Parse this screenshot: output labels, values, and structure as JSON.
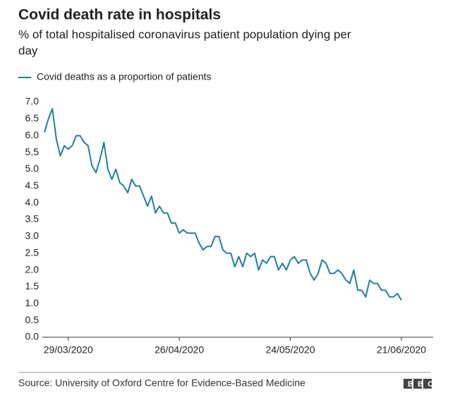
{
  "chart_data": {
    "type": "line",
    "title": "Covid death rate in hospitals",
    "subtitle": [
      "% of total hospitalised coronavirus patient population dying per",
      "day"
    ],
    "source": "Source: University of Oxford Centre for Evidence-Based Medicine",
    "logo": "BBC",
    "categories": [
      "23/03/2020",
      "24/03/2020",
      "25/03/2020",
      "26/03/2020",
      "27/03/2020",
      "28/03/2020",
      "29/03/2020",
      "30/03/2020",
      "31/03/2020",
      "01/04/2020",
      "02/04/2020",
      "03/04/2020",
      "04/04/2020",
      "05/04/2020",
      "06/04/2020",
      "07/04/2020",
      "08/04/2020",
      "09/04/2020",
      "10/04/2020",
      "11/04/2020",
      "12/04/2020",
      "13/04/2020",
      "14/04/2020",
      "15/04/2020",
      "16/04/2020",
      "17/04/2020",
      "18/04/2020",
      "19/04/2020",
      "20/04/2020",
      "21/04/2020",
      "22/04/2020",
      "23/04/2020",
      "24/04/2020",
      "25/04/2020",
      "26/04/2020",
      "27/04/2020",
      "28/04/2020",
      "29/04/2020",
      "30/04/2020",
      "01/05/2020",
      "02/05/2020",
      "03/05/2020",
      "04/05/2020",
      "05/05/2020",
      "06/05/2020",
      "07/05/2020",
      "08/05/2020",
      "09/05/2020",
      "10/05/2020",
      "11/05/2020",
      "12/05/2020",
      "13/05/2020",
      "14/05/2020",
      "15/05/2020",
      "16/05/2020",
      "17/05/2020",
      "18/05/2020",
      "19/05/2020",
      "20/05/2020",
      "21/05/2020",
      "22/05/2020",
      "23/05/2020",
      "24/05/2020",
      "25/05/2020",
      "26/05/2020",
      "27/05/2020",
      "28/05/2020",
      "29/05/2020",
      "30/05/2020",
      "31/05/2020",
      "01/06/2020",
      "02/06/2020",
      "03/06/2020",
      "04/06/2020",
      "05/06/2020",
      "06/06/2020",
      "07/06/2020",
      "08/06/2020",
      "09/06/2020",
      "10/06/2020",
      "11/06/2020",
      "12/06/2020",
      "13/06/2020",
      "14/06/2020",
      "15/06/2020",
      "16/06/2020",
      "17/06/2020",
      "18/06/2020",
      "19/06/2020",
      "20/06/2020",
      "21/06/2020"
    ],
    "series": [
      {
        "name": "Covid deaths as a proportion of patients",
        "color": "#1f7f9e",
        "values": [
          6.1,
          6.5,
          6.8,
          5.9,
          5.4,
          5.7,
          5.6,
          5.7,
          6.0,
          6.0,
          5.8,
          5.7,
          5.1,
          4.9,
          5.3,
          5.8,
          5.0,
          4.7,
          5.0,
          4.6,
          4.5,
          4.3,
          4.7,
          4.5,
          4.5,
          4.2,
          3.9,
          4.2,
          3.7,
          3.9,
          3.7,
          3.7,
          3.4,
          3.4,
          3.1,
          3.2,
          3.1,
          3.1,
          3.1,
          2.8,
          2.6,
          2.7,
          2.7,
          3.0,
          3.0,
          2.6,
          2.5,
          2.5,
          2.1,
          2.4,
          2.1,
          2.5,
          2.4,
          2.5,
          2.0,
          2.3,
          2.2,
          2.4,
          2.4,
          2.0,
          2.2,
          2.0,
          2.3,
          2.4,
          2.2,
          2.3,
          2.3,
          1.9,
          1.7,
          1.9,
          2.3,
          2.2,
          1.9,
          1.9,
          2.0,
          1.9,
          1.7,
          1.6,
          2.0,
          1.4,
          1.4,
          1.2,
          1.7,
          1.6,
          1.6,
          1.4,
          1.4,
          1.2,
          1.2,
          1.3,
          1.1
        ]
      }
    ],
    "xticks": [
      "29/03/2020",
      "26/04/2020",
      "24/05/2020",
      "21/06/2020"
    ],
    "ylim": [
      0,
      7
    ],
    "yticks": [
      {
        "value": 0,
        "label": "0.0"
      },
      {
        "value": 0.5,
        "label": "0.5"
      },
      {
        "value": 1,
        "label": "1.0"
      },
      {
        "value": 1.5,
        "label": "1.5"
      },
      {
        "value": 2,
        "label": "2.0"
      },
      {
        "value": 2.5,
        "label": "2.5"
      },
      {
        "value": 3,
        "label": "3.0"
      },
      {
        "value": 3.5,
        "label": "3.5"
      },
      {
        "value": 4,
        "label": "4.0"
      },
      {
        "value": 4.5,
        "label": "4.5"
      },
      {
        "value": 5,
        "label": "5.0"
      },
      {
        "value": 5.5,
        "label": "5.5"
      },
      {
        "value": 6,
        "label": "6.0"
      },
      {
        "value": 6.5,
        "label": "6.5"
      },
      {
        "value": 7,
        "label": "7.0"
      }
    ],
    "grid": false
  }
}
